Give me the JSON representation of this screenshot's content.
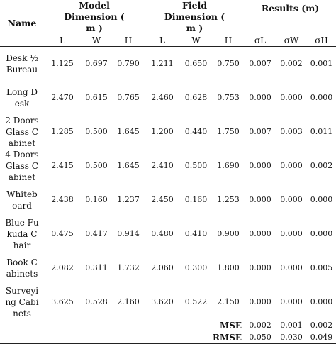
{
  "headers": {
    "name": "Name",
    "model": "Model Dimension ( m )",
    "field": "Field Dimension ( m )",
    "results": "Results (m)",
    "sub": [
      "L",
      "W",
      "H",
      "L",
      "W",
      "H",
      "σL",
      "σW",
      "σH"
    ]
  },
  "rows": [
    {
      "name": "Desk ½ Bureau",
      "values": [
        "1.125",
        "0.697",
        "0.790",
        "1.211",
        "0.650",
        "0.750",
        "0.007",
        "0.002",
        "0.001"
      ]
    },
    {
      "name": "Long Desk",
      "values": [
        "2.470",
        "0.615",
        "0.765",
        "2.460",
        "0.628",
        "0.753",
        "0.000",
        "0.000",
        "0.000"
      ]
    },
    {
      "name": "2 Doors Glass Cabinet",
      "values": [
        "1.285",
        "0.500",
        "1.645",
        "1.200",
        "0.440",
        "1.750",
        "0.007",
        "0.003",
        "0.011"
      ]
    },
    {
      "name": "4 Doors Glass Cabinet",
      "values": [
        "2.415",
        "0.500",
        "1.645",
        "2.410",
        "0.500",
        "1.690",
        "0.000",
        "0.000",
        "0.002"
      ]
    },
    {
      "name": "Whiteboard",
      "values": [
        "2.438",
        "0.160",
        "1.237",
        "2.450",
        "0.160",
        "1.253",
        "0.000",
        "0.000",
        "0.000"
      ]
    },
    {
      "name": "Blue Fukuda Chair",
      "values": [
        "0.475",
        "0.417",
        "0.914",
        "0.480",
        "0.410",
        "0.900",
        "0.000",
        "0.000",
        "0.000"
      ]
    },
    {
      "name": "Book Cabinets",
      "values": [
        "2.082",
        "0.311",
        "1.732",
        "2.060",
        "0.300",
        "1.800",
        "0.000",
        "0.000",
        "0.005"
      ]
    },
    {
      "name": "Surveying Cabinets",
      "values": [
        "3.625",
        "0.528",
        "2.160",
        "3.620",
        "0.522",
        "2.150",
        "0.000",
        "0.000",
        "0.000"
      ]
    }
  ],
  "summary": [
    {
      "label": "MSE",
      "values": [
        "0.002",
        "0.001",
        "0.002"
      ]
    },
    {
      "label": "RMSE",
      "values": [
        "0.050",
        "0.030",
        "0.049"
      ]
    }
  ]
}
